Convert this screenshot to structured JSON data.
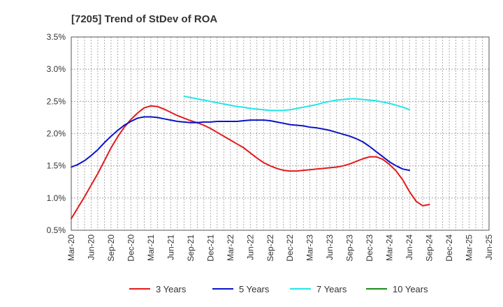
{
  "chart_data": {
    "type": "line",
    "title": "[7205]  Trend of StDev of ROA",
    "xlabel": "",
    "ylabel": "",
    "ylim": [
      0.5,
      3.5
    ],
    "y_ticks": [
      "0.5%",
      "1.0%",
      "1.5%",
      "2.0%",
      "2.5%",
      "3.0%",
      "3.5%"
    ],
    "y_tick_values": [
      0.5,
      1.0,
      1.5,
      2.0,
      2.5,
      3.0,
      3.5
    ],
    "x_tick_labels": [
      "Mar-20",
      "Jun-20",
      "Sep-20",
      "Dec-20",
      "Mar-21",
      "Jun-21",
      "Sep-21",
      "Dec-21",
      "Mar-22",
      "Jun-22",
      "Sep-22",
      "Dec-22",
      "Mar-23",
      "Jun-23",
      "Sep-23",
      "Dec-23",
      "Mar-24",
      "Jun-24",
      "Sep-24",
      "Dec-24",
      "Mar-25",
      "Jun-25"
    ],
    "grid": true,
    "legend_position": "bottom",
    "series": [
      {
        "name": "3 Years",
        "color": "#e31a1c",
        "values": [
          0.68,
          0.85,
          1.02,
          1.2,
          1.38,
          1.58,
          1.78,
          1.95,
          2.1,
          2.22,
          2.32,
          2.4,
          2.43,
          2.42,
          2.38,
          2.33,
          2.28,
          2.24,
          2.2,
          2.17,
          2.13,
          2.08,
          2.02,
          1.96,
          1.9,
          1.84,
          1.78,
          1.7,
          1.62,
          1.55,
          1.5,
          1.46,
          1.43,
          1.42,
          1.42,
          1.43,
          1.44,
          1.45,
          1.46,
          1.47,
          1.48,
          1.5,
          1.53,
          1.57,
          1.61,
          1.64,
          1.64,
          1.6,
          1.52,
          1.42,
          1.28,
          1.1,
          0.95,
          0.88,
          0.9
        ]
      },
      {
        "name": "5 Years",
        "color": "#0a14c8",
        "values": [
          1.48,
          1.52,
          1.58,
          1.66,
          1.75,
          1.86,
          1.96,
          2.05,
          2.13,
          2.19,
          2.24,
          2.26,
          2.26,
          2.25,
          2.23,
          2.21,
          2.19,
          2.18,
          2.17,
          2.17,
          2.18,
          2.18,
          2.19,
          2.19,
          2.19,
          2.19,
          2.2,
          2.21,
          2.21,
          2.21,
          2.2,
          2.18,
          2.16,
          2.14,
          2.13,
          2.12,
          2.1,
          2.09,
          2.07,
          2.05,
          2.02,
          1.99,
          1.96,
          1.92,
          1.87,
          1.8,
          1.72,
          1.64,
          1.56,
          1.5,
          1.45,
          1.43
        ]
      },
      {
        "name": "7 Years",
        "color": "#22e6e6",
        "values": [
          2.58,
          2.56,
          2.54,
          2.52,
          2.5,
          2.48,
          2.46,
          2.44,
          2.42,
          2.41,
          2.39,
          2.38,
          2.37,
          2.36,
          2.36,
          2.36,
          2.37,
          2.39,
          2.41,
          2.43,
          2.45,
          2.48,
          2.5,
          2.52,
          2.53,
          2.54,
          2.54,
          2.53,
          2.52,
          2.51,
          2.49,
          2.47,
          2.44,
          2.41,
          2.37
        ]
      },
      {
        "name": "10 Years",
        "color": "#1a8c1a",
        "values": []
      }
    ],
    "series_start_index": [
      0,
      0,
      17,
      0
    ]
  }
}
